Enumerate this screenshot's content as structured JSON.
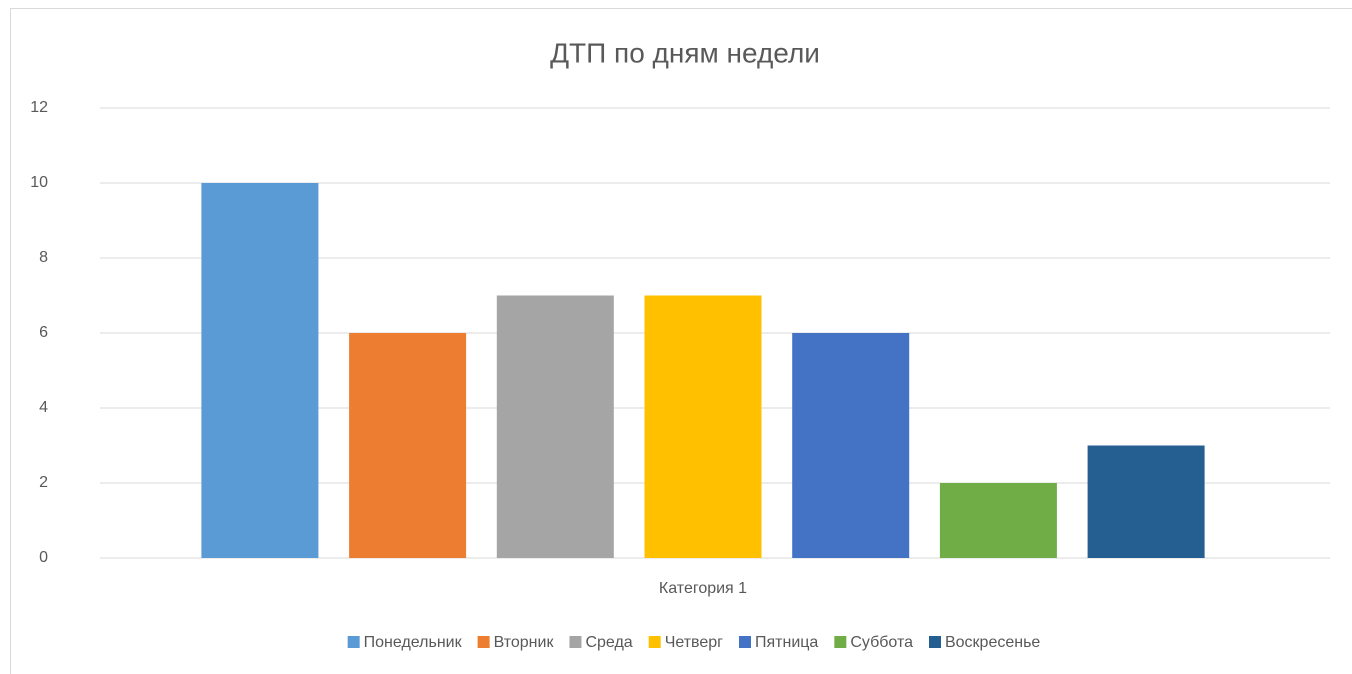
{
  "chart_data": {
    "type": "bar",
    "title": "ДТП по дням недели",
    "categories": [
      "Категория 1"
    ],
    "series": [
      {
        "name": "Понедельник",
        "color": "#5b9bd5",
        "values": [
          10
        ]
      },
      {
        "name": "Вторник",
        "color": "#ed7d31",
        "values": [
          6
        ]
      },
      {
        "name": "Среда",
        "color": "#a5a5a5",
        "values": [
          7
        ]
      },
      {
        "name": "Четверг",
        "color": "#ffc000",
        "values": [
          7
        ]
      },
      {
        "name": "Пятница",
        "color": "#4472c4",
        "values": [
          6
        ]
      },
      {
        "name": "Суббота",
        "color": "#70ad47",
        "values": [
          2
        ]
      },
      {
        "name": "Воскресенье",
        "color": "#255e91",
        "values": [
          3
        ]
      }
    ],
    "ylim": [
      0,
      12
    ],
    "yticks": [
      0,
      2,
      4,
      6,
      8,
      10,
      12
    ],
    "grid": true,
    "legend": "bottom"
  }
}
